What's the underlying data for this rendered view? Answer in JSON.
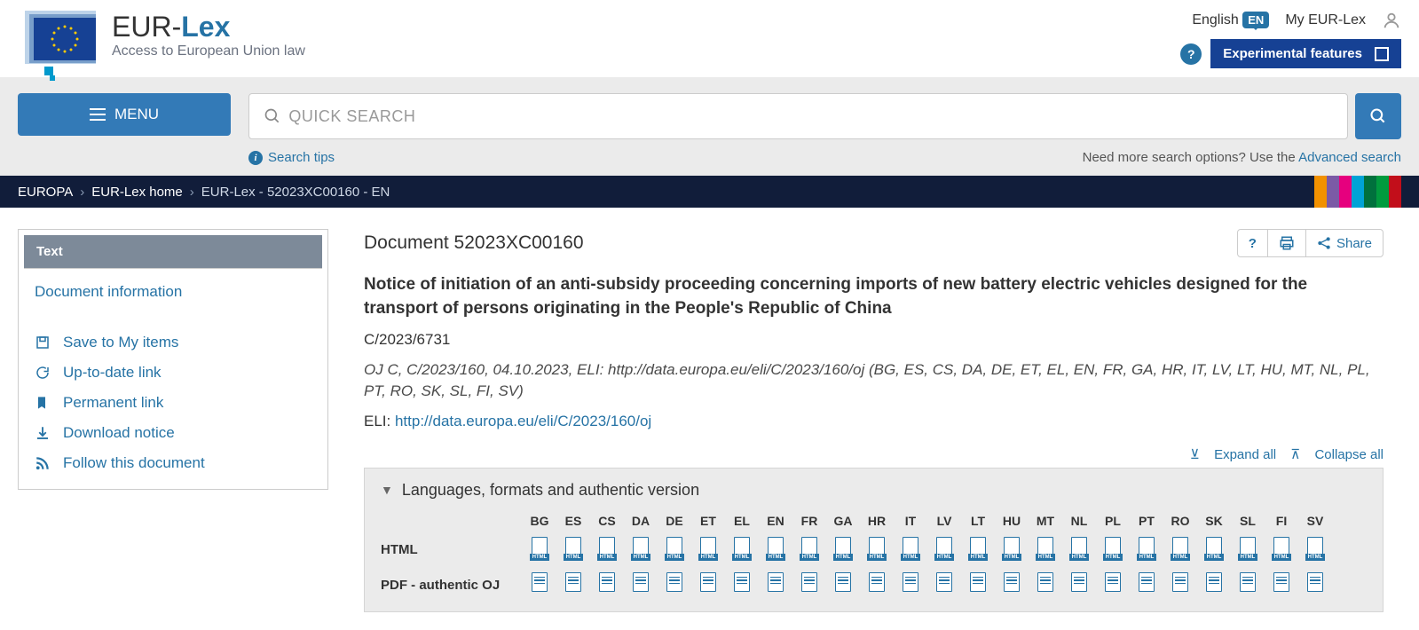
{
  "brand": {
    "title_pre": "EUR-",
    "title_lex": "Lex",
    "subtitle": "Access to European Union law"
  },
  "header": {
    "language_label": "English",
    "language_code": "EN",
    "my_eurlex": "My EUR-Lex",
    "experimental": "Experimental features"
  },
  "menu_label": "MENU",
  "search": {
    "placeholder": "QUICK SEARCH",
    "tips": "Search tips",
    "need_more": "Need more search options? Use the ",
    "advanced": "Advanced search"
  },
  "breadcrumb": {
    "items": [
      "EUROPA",
      "EUR-Lex home",
      "EUR-Lex - 52023XC00160 - EN"
    ]
  },
  "stripe_colors": [
    "#f29100",
    "#7b5aa6",
    "#e6007e",
    "#00a3d6",
    "#00713d",
    "#009b3e",
    "#c20e1a"
  ],
  "sidebar": {
    "panel_title": "Text",
    "doc_info": "Document information",
    "actions": [
      {
        "icon": "save",
        "label": "Save to My items"
      },
      {
        "icon": "refresh",
        "label": "Up-to-date link"
      },
      {
        "icon": "bookmark",
        "label": "Permanent link"
      },
      {
        "icon": "download",
        "label": "Download notice"
      },
      {
        "icon": "rss",
        "label": "Follow this document"
      }
    ]
  },
  "document": {
    "id_label": "Document 52023XC00160",
    "help_label": "?",
    "share_label": "Share",
    "title": "Notice of initiation of an anti-subsidy proceeding concerning imports of new battery electric vehicles designed for the transport of persons originating in the People's Republic of China",
    "ref": "C/2023/6731",
    "citation": "OJ C, C/2023/160, 04.10.2023, ELI: http://data.europa.eu/eli/C/2023/160/oj (BG, ES, CS, DA, DE, ET, EL, EN, FR, GA, HR, IT, LV, LT, HU, MT, NL, PL, PT, RO, SK, SL, FI, SV)",
    "eli_prefix": "ELI: ",
    "eli_url": "http://data.europa.eu/eli/C/2023/160/oj"
  },
  "expand": {
    "expand": "Expand all",
    "collapse": "Collapse all"
  },
  "langPanel": {
    "title": "Languages, formats and authentic version",
    "languages": [
      "BG",
      "ES",
      "CS",
      "DA",
      "DE",
      "ET",
      "EL",
      "EN",
      "FR",
      "GA",
      "HR",
      "IT",
      "LV",
      "LT",
      "HU",
      "MT",
      "NL",
      "PL",
      "PT",
      "RO",
      "SK",
      "SL",
      "FI",
      "SV"
    ],
    "formats": [
      "HTML",
      "PDF - authentic OJ"
    ]
  }
}
